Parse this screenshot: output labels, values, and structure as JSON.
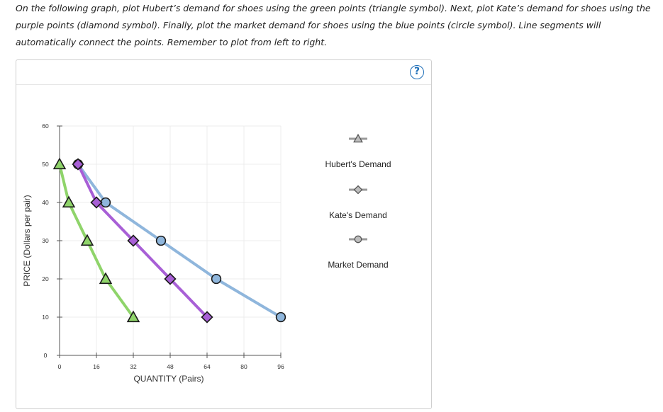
{
  "instructions": "On the following graph, plot Hubert’s demand for shoes using the green points (triangle symbol). Next, plot Kate’s demand for shoes using the purple points (diamond symbol). Finally, plot the market demand for shoes using the blue points (circle symbol). Line segments will automatically connect the points. Remember to plot from left to right.",
  "help_button": "?",
  "chart_data": {
    "type": "line",
    "xlabel": "QUANTITY (Pairs)",
    "ylabel": "PRICE (Dollars per pair)",
    "xlim": [
      0,
      96
    ],
    "ylim": [
      0,
      60
    ],
    "xticks": [
      0,
      16,
      32,
      48,
      64,
      80,
      96
    ],
    "yticks": [
      0,
      10,
      20,
      30,
      40,
      50,
      60
    ],
    "grid": true,
    "legend_placement": "right",
    "series": [
      {
        "name": "Hubert's Demand",
        "marker": "triangle",
        "color": "#8fd46a",
        "x": [
          0,
          4,
          12,
          20,
          32
        ],
        "y": [
          50,
          40,
          30,
          20,
          10
        ]
      },
      {
        "name": "Kate's Demand",
        "marker": "diamond",
        "color": "#a85fd6",
        "x": [
          8,
          16,
          32,
          48,
          64
        ],
        "y": [
          50,
          40,
          30,
          20,
          10
        ]
      },
      {
        "name": "Market Demand",
        "marker": "circle",
        "color": "#8fb6dc",
        "x": [
          8,
          20,
          44,
          68,
          96
        ],
        "y": [
          50,
          40,
          30,
          20,
          10
        ]
      }
    ]
  },
  "colors": {
    "triangle_fill": "#8fd46a",
    "diamond_fill": "#a85fd6",
    "circle_fill": "#8fb6dc",
    "marker_stroke": "#1a1a1a",
    "legend_marker_fill": "#bdbdbd",
    "legend_line": "#9a9a9a",
    "grid": "#ececec",
    "axis": "#555555",
    "help": "#1f6fb8"
  }
}
